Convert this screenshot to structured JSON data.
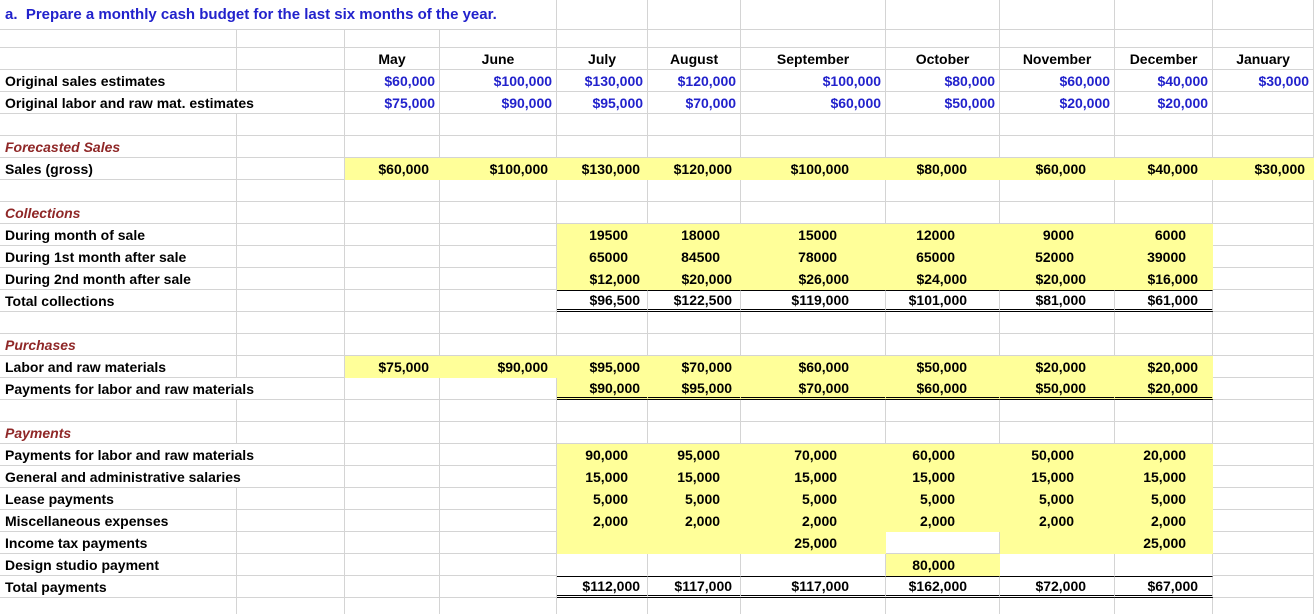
{
  "colors": {
    "blue": "#2222cc",
    "red": "#8f2727",
    "yellow": "#ffff99",
    "grid": "#d4d4d4"
  },
  "columns": [
    "May",
    "June",
    "July",
    "August",
    "September",
    "October",
    "November",
    "December",
    "January"
  ],
  "rows": [
    {
      "kind": "title",
      "label": "a.  Prepare a monthly cash budget for the last six months of the year."
    },
    {
      "kind": "blank"
    },
    {
      "kind": "cols"
    },
    {
      "kind": "data",
      "label": "Original sales estimates",
      "style": "blue",
      "fmt": "currency",
      "cells": [
        "$60,000",
        "$100,000",
        "$130,000",
        "$120,000",
        "$100,000",
        "$80,000",
        "$60,000",
        "$40,000",
        "$30,000"
      ]
    },
    {
      "kind": "data",
      "label": "Original labor and raw mat. estimates",
      "style": "blue",
      "fmt": "currency",
      "longLabel": true,
      "cells": [
        "$75,000",
        "$90,000",
        "$95,000",
        "$70,000",
        "$60,000",
        "$50,000",
        "$20,000",
        "$20,000",
        ""
      ]
    },
    {
      "kind": "blank"
    },
    {
      "kind": "heading",
      "label": "Forecasted Sales"
    },
    {
      "kind": "data",
      "label": "Sales (gross)",
      "fmt": "currency",
      "yellow": [
        0,
        1,
        2,
        3,
        4,
        5,
        6,
        7,
        8
      ],
      "cells": [
        "$60,000",
        "$100,000",
        "$130,000",
        "$120,000",
        "$100,000",
        "$80,000",
        "$60,000",
        "$40,000",
        "$30,000"
      ]
    },
    {
      "kind": "blank"
    },
    {
      "kind": "heading",
      "label": "Collections"
    },
    {
      "kind": "data",
      "label": "During month of sale",
      "fmt": "plain",
      "yellow": [
        2,
        3,
        4,
        5,
        6,
        7
      ],
      "cells": [
        "",
        "",
        "19500",
        "18000",
        "15000",
        "12000",
        "9000",
        "6000",
        ""
      ]
    },
    {
      "kind": "data",
      "label": "During 1st month after sale",
      "fmt": "plain",
      "yellow": [
        2,
        3,
        4,
        5,
        6,
        7
      ],
      "cells": [
        "",
        "",
        "65000",
        "84500",
        "78000",
        "65000",
        "52000",
        "39000",
        ""
      ]
    },
    {
      "kind": "data",
      "label": "During 2nd month after sale",
      "fmt": "currency",
      "yellow": [
        2,
        3,
        4,
        5,
        6,
        7
      ],
      "cells": [
        "",
        "",
        "$12,000",
        "$20,000",
        "$26,000",
        "$24,000",
        "$20,000",
        "$16,000",
        ""
      ]
    },
    {
      "kind": "data",
      "label": "Total collections",
      "fmt": "currency",
      "borderTop": [
        2,
        3,
        4,
        5,
        6,
        7
      ],
      "borderDouble": [
        2,
        3,
        4,
        5,
        6,
        7
      ],
      "cells": [
        "",
        "",
        "$96,500",
        "$122,500",
        "$119,000",
        "$101,000",
        "$81,000",
        "$61,000",
        ""
      ]
    },
    {
      "kind": "blank"
    },
    {
      "kind": "heading",
      "label": "Purchases"
    },
    {
      "kind": "data",
      "label": "Labor and raw materials",
      "fmt": "currency",
      "yellow": [
        0,
        1,
        2,
        3,
        4,
        5,
        6,
        7
      ],
      "cells": [
        "$75,000",
        "$90,000",
        "$95,000",
        "$70,000",
        "$60,000",
        "$50,000",
        "$20,000",
        "$20,000",
        ""
      ]
    },
    {
      "kind": "data",
      "label": "Payments for labor and raw materials",
      "fmt": "currency",
      "longLabel": true,
      "yellow": [
        2,
        3,
        4,
        5,
        6,
        7
      ],
      "borderDouble": [
        2,
        3,
        4,
        5,
        6,
        7
      ],
      "cells": [
        "",
        "",
        "$90,000",
        "$95,000",
        "$70,000",
        "$60,000",
        "$50,000",
        "$20,000",
        ""
      ]
    },
    {
      "kind": "blank"
    },
    {
      "kind": "heading",
      "label": "Payments"
    },
    {
      "kind": "data",
      "label": "Payments for labor and raw materials",
      "fmt": "plain",
      "longLabel": true,
      "yellow": [
        2,
        3,
        4,
        5,
        6,
        7
      ],
      "cells": [
        "",
        "",
        "90,000",
        "95,000",
        "70,000",
        "60,000",
        "50,000",
        "20,000",
        ""
      ]
    },
    {
      "kind": "data",
      "label": "General and administrative salaries",
      "fmt": "plain",
      "longLabel": true,
      "yellow": [
        2,
        3,
        4,
        5,
        6,
        7
      ],
      "cells": [
        "",
        "",
        "15,000",
        "15,000",
        "15,000",
        "15,000",
        "15,000",
        "15,000",
        ""
      ]
    },
    {
      "kind": "data",
      "label": "Lease payments",
      "fmt": "plain",
      "yellow": [
        2,
        3,
        4,
        5,
        6,
        7
      ],
      "cells": [
        "",
        "",
        "5,000",
        "5,000",
        "5,000",
        "5,000",
        "5,000",
        "5,000",
        ""
      ]
    },
    {
      "kind": "data",
      "label": "Miscellaneous expenses",
      "fmt": "plain",
      "yellow": [
        2,
        3,
        4,
        5,
        6,
        7
      ],
      "cells": [
        "",
        "",
        "2,000",
        "2,000",
        "2,000",
        "2,000",
        "2,000",
        "2,000",
        ""
      ]
    },
    {
      "kind": "data",
      "label": "Income tax payments",
      "fmt": "plain",
      "yellow": [
        2,
        3,
        4,
        6,
        7
      ],
      "cells": [
        "",
        "",
        "",
        "",
        "25,000",
        "",
        "",
        "25,000",
        ""
      ]
    },
    {
      "kind": "data",
      "label": "Design studio payment",
      "fmt": "plain",
      "yellow": [
        5
      ],
      "cells": [
        "",
        "",
        "",
        "",
        "",
        "80,000",
        "",
        "",
        ""
      ]
    },
    {
      "kind": "data",
      "label": "Total payments",
      "fmt": "currency",
      "borderTop": [
        2,
        3,
        4,
        5,
        6,
        7
      ],
      "borderDouble": [
        2,
        3,
        4,
        5,
        6,
        7
      ],
      "cells": [
        "",
        "",
        "$112,000",
        "$117,000",
        "$117,000",
        "$162,000",
        "$72,000",
        "$67,000",
        ""
      ]
    },
    {
      "kind": "blank"
    }
  ]
}
